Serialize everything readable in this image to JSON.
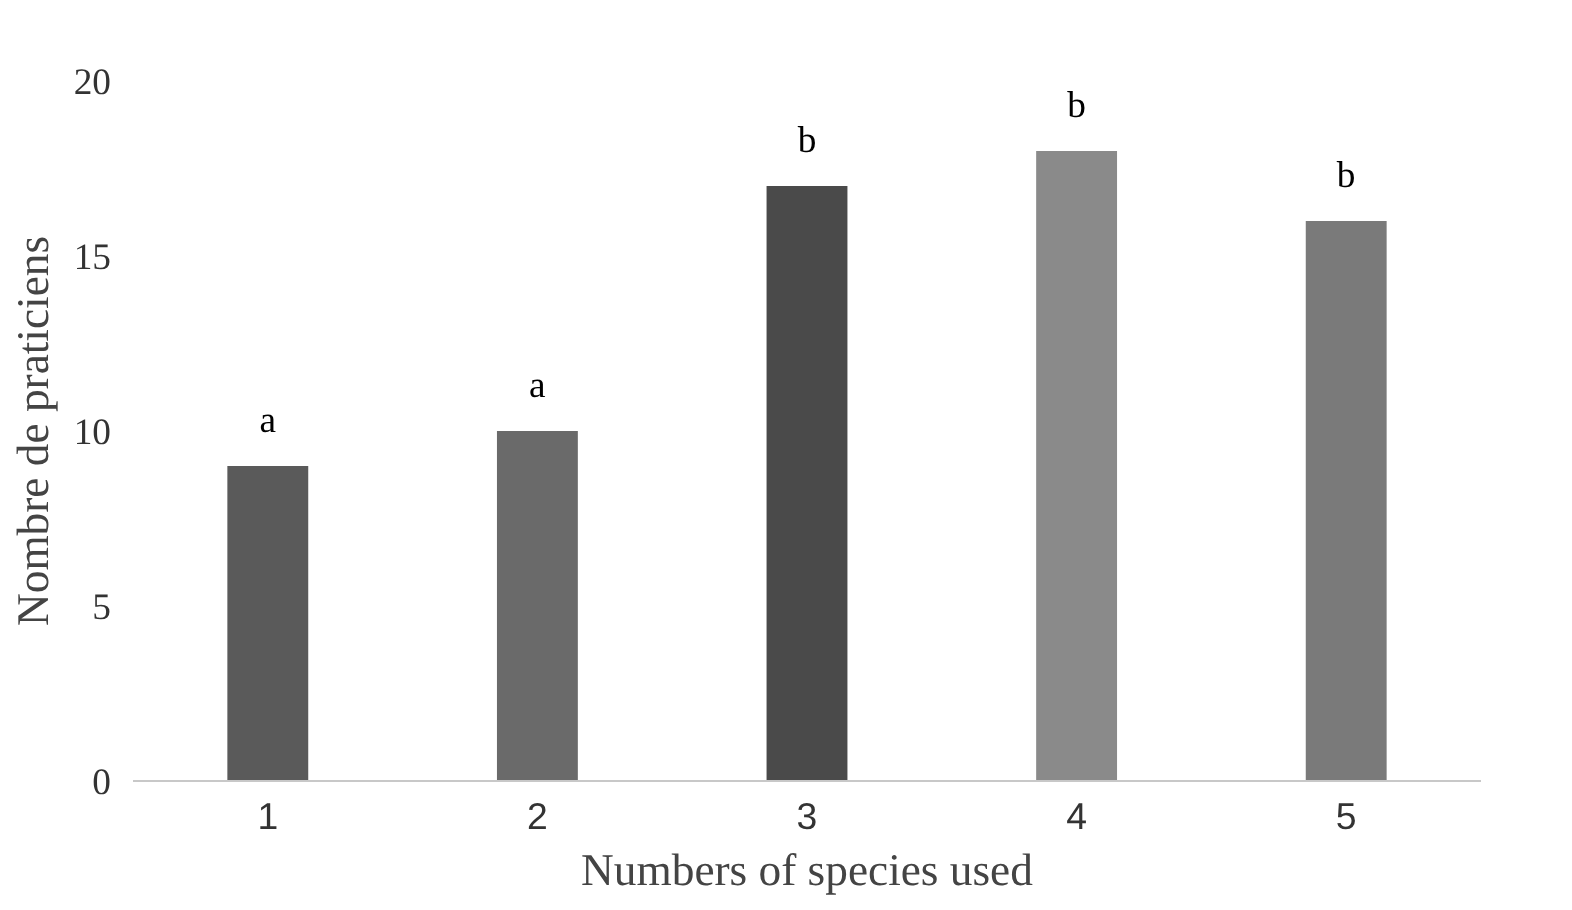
{
  "chart_data": {
    "type": "bar",
    "xlabel": "Numbers of species used",
    "ylabel": "Nombre de praticiens",
    "categories": [
      "1",
      "2",
      "3",
      "4",
      "5"
    ],
    "values": [
      9,
      10,
      17,
      18,
      16
    ],
    "colors": [
      "#5a5a5a",
      "#6a6a6a",
      "#4a4a4a",
      "#8a8a8a",
      "#7a7a7a"
    ],
    "ylim": [
      0,
      20
    ],
    "yticks": [
      0,
      5,
      10,
      15,
      20
    ],
    "grid": false,
    "annotations": [
      {
        "text": "a",
        "x": "1",
        "y": 9
      },
      {
        "text": "a",
        "x": "2",
        "y": 10
      },
      {
        "text": "b",
        "x": "3",
        "y": 17
      },
      {
        "text": "b",
        "x": "4",
        "y": 18
      },
      {
        "text": "b",
        "x": "5",
        "y": 16
      }
    ]
  }
}
